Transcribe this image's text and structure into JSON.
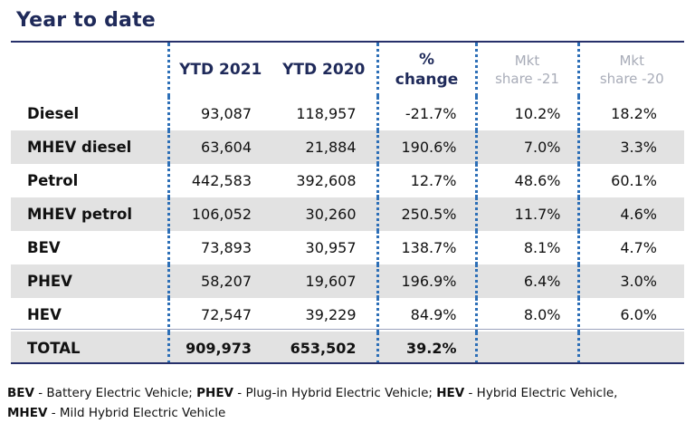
{
  "title": "Year to date",
  "headers": {
    "ytd2021": "YTD 2021",
    "ytd2020": "YTD 2020",
    "change_line1": "%",
    "change_line2": "change",
    "mkt21_line1": "Mkt",
    "mkt21_line2": "share -21",
    "mkt20_line1": "Mkt",
    "mkt20_line2": "share -20"
  },
  "rows": [
    {
      "label": "Diesel",
      "ytd2021": "93,087",
      "ytd2020": "118,957",
      "change": "-21.7%",
      "mkt21": "10.2%",
      "mkt20": "18.2%"
    },
    {
      "label": "MHEV diesel",
      "ytd2021": "63,604",
      "ytd2020": "21,884",
      "change": "190.6%",
      "mkt21": "7.0%",
      "mkt20": "3.3%"
    },
    {
      "label": "Petrol",
      "ytd2021": "442,583",
      "ytd2020": "392,608",
      "change": "12.7%",
      "mkt21": "48.6%",
      "mkt20": "60.1%"
    },
    {
      "label": "MHEV petrol",
      "ytd2021": "106,052",
      "ytd2020": "30,260",
      "change": "250.5%",
      "mkt21": "11.7%",
      "mkt20": "4.6%"
    },
    {
      "label": "BEV",
      "ytd2021": "73,893",
      "ytd2020": "30,957",
      "change": "138.7%",
      "mkt21": "8.1%",
      "mkt20": "4.7%"
    },
    {
      "label": "PHEV",
      "ytd2021": "58,207",
      "ytd2020": "19,607",
      "change": "196.9%",
      "mkt21": "6.4%",
      "mkt20": "3.0%"
    },
    {
      "label": "HEV",
      "ytd2021": "72,547",
      "ytd2020": "39,229",
      "change": "84.9%",
      "mkt21": "8.0%",
      "mkt20": "6.0%"
    }
  ],
  "total": {
    "label": "TOTAL",
    "ytd2021": "909,973",
    "ytd2020": "653,502",
    "change": "39.2%",
    "mkt21": "",
    "mkt20": ""
  },
  "legend": {
    "bev_abbr": "BEV",
    "bev_text": " - Battery Electric Vehicle; ",
    "phev_abbr": "PHEV",
    "phev_text": " - Plug-in Hybrid Electric Vehicle; ",
    "hev_abbr": "HEV",
    "hev_text": " - Hybrid Electric Vehicle,",
    "mhev_abbr": "MHEV",
    "mhev_text": " - Mild Hybrid Electric Vehicle"
  },
  "colors": {
    "title": "#1f2a5a",
    "dotted": "#2d6fb7",
    "shade": "#e2e2e2",
    "mkt_header": "#a8acb8"
  }
}
